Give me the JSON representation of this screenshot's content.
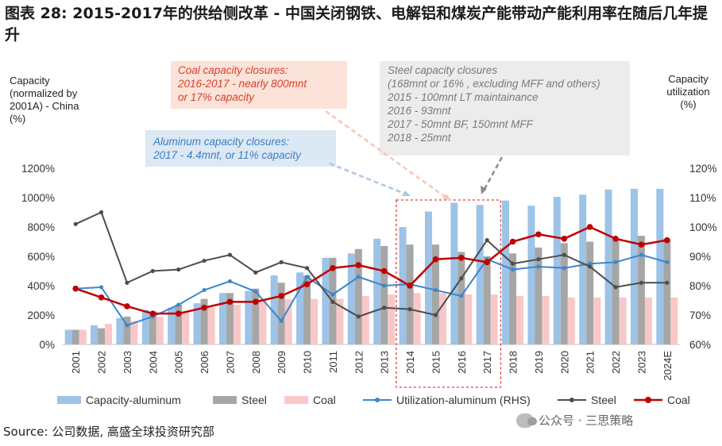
{
  "title": "图表 28: 2015-2017年的供给侧改革 - 中国关闭钢铁、电解铝和煤炭产能带动产能利用率在随后几年提升",
  "left_axis_title": [
    "Capacity",
    "(normalized by",
    "2001A) - China",
    "(%)"
  ],
  "right_axis_title": [
    "Capacity",
    "utilization",
    "(%)"
  ],
  "annotations": {
    "coal": [
      "Coal capacity closures:",
      "2016-2017 - nearly 800mnt",
      "or 17% capacity"
    ],
    "aluminum": [
      "Aluminum capacity closures:",
      "2017 - 4.4mnt, or 11% capacity"
    ],
    "steel": [
      "Steel capacity closures",
      "(168mnt or 16% , excluding MFF and others)",
      "2015 - 100mnt LT maintainance",
      "2016 - 93mnt",
      "2017 - 50mnt BF, 150mnt MFF",
      "2018 - 25mnt"
    ]
  },
  "legend": {
    "cap_alu": "Capacity-aluminum",
    "steel_bar": "Steel",
    "coal_bar": "Coal",
    "util_alu": "Utilization-aluminum (RHS)",
    "steel_line": "Steel",
    "coal_line": "Coal"
  },
  "source": "Source: 公司数据, 高盛全球投资研究部",
  "watermark": "公众号 · 三思策略",
  "colors": {
    "cap_alu": "#9dc3e6",
    "steel_bar": "#a6a6a6",
    "coal_bar": "#f8c8c8",
    "util_alu": "#3a86cf",
    "steel_line": "#4d4d4d",
    "coal_line": "#c00000",
    "highlight": "#e03a3a"
  },
  "chart_data": {
    "type": "bar",
    "categories": [
      "2001",
      "2002",
      "2003",
      "2004",
      "2005",
      "2006",
      "2007",
      "2008",
      "2009",
      "2010",
      "2011",
      "2012",
      "2013",
      "2014",
      "2015",
      "2016",
      "2017",
      "2018",
      "2019",
      "2020",
      "2021",
      "2022",
      "2023",
      "2024E"
    ],
    "y_left": {
      "min": 0,
      "max": 1200,
      "step": 200,
      "format": "%"
    },
    "y_right": {
      "min": 60,
      "max": 120,
      "step": 10,
      "format": "%"
    },
    "highlight_range": [
      "2014",
      "2017"
    ],
    "bars": [
      {
        "name": "Capacity-aluminum",
        "values": [
          100,
          130,
          180,
          235,
          250,
          280,
          350,
          365,
          470,
          490,
          590,
          620,
          720,
          800,
          905,
          965,
          950,
          980,
          945,
          1005,
          1020,
          1055,
          1060,
          1060
        ]
      },
      {
        "name": "Steel",
        "values": [
          100,
          110,
          190,
          225,
          270,
          310,
          350,
          380,
          420,
          470,
          590,
          650,
          670,
          680,
          680,
          630,
          600,
          620,
          660,
          690,
          700,
          720,
          740,
          720
        ]
      },
      {
        "name": "Coal",
        "values": [
          100,
          140,
          160,
          190,
          220,
          250,
          270,
          300,
          310,
          310,
          310,
          330,
          340,
          350,
          350,
          340,
          340,
          330,
          330,
          320,
          320,
          320,
          320,
          320
        ]
      }
    ],
    "lines": [
      {
        "name": "Utilization-aluminum (RHS)",
        "axis": "right",
        "values": [
          79,
          79.5,
          66.5,
          69.5,
          73.5,
          78.5,
          81.5,
          78,
          68,
          83,
          77,
          83,
          80,
          80.5,
          78.5,
          76.5,
          89,
          85.5,
          86.5,
          86,
          87.5,
          88,
          90.5,
          88
        ]
      },
      {
        "name": "Steel",
        "axis": "right",
        "values": [
          101,
          105,
          81,
          85,
          85.5,
          88.5,
          90.5,
          84.5,
          88,
          86,
          74.5,
          69.5,
          72.5,
          72,
          70,
          82.5,
          95.5,
          87.5,
          89,
          90.5,
          86.5,
          79.5,
          81,
          81
        ]
      },
      {
        "name": "Coal",
        "axis": "right",
        "values": [
          79,
          76,
          73,
          70.5,
          70.5,
          72.5,
          74.5,
          74.5,
          76.5,
          80.5,
          86,
          87,
          85,
          80,
          89,
          89.5,
          88,
          95,
          97.5,
          96,
          100,
          96,
          94,
          95.5
        ]
      }
    ]
  }
}
